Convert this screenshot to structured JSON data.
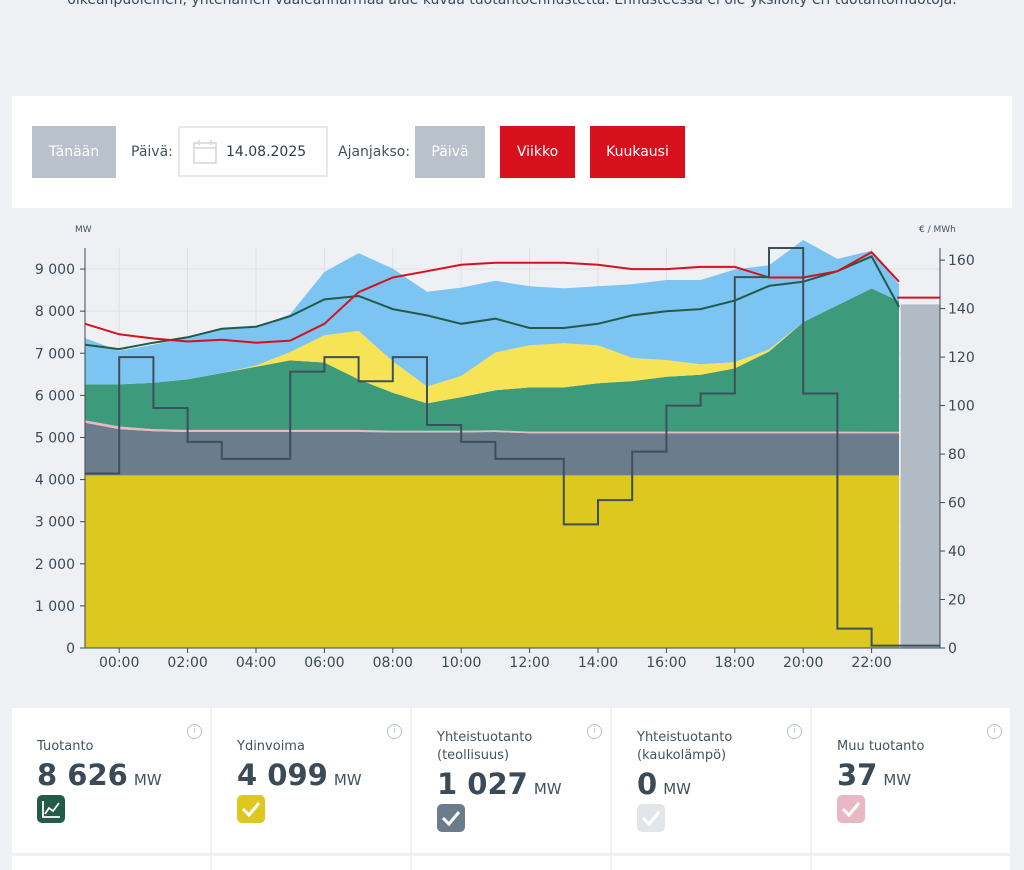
{
  "intro_text": "oikeanpuoleinen, yhtenäinen vaaleanharmaa alue kuvaa tuotantoennustetta. Ennusteessa ei ole yksilöity eri tuotantomuotoja.",
  "toolbar": {
    "today_label": "Tänään",
    "date_label": "Päivä:",
    "date_value": "14.08.2025",
    "period_label": "Ajanjakso:",
    "day_label": "Päivä",
    "week_label": "Viikko",
    "month_label": "Kuukausi"
  },
  "chart_data": {
    "type": "area",
    "left_unit": "MW",
    "right_unit": "€ / MWh",
    "x_ticks": [
      "00:00",
      "02:00",
      "04:00",
      "06:00",
      "08:00",
      "10:00",
      "12:00",
      "14:00",
      "16:00",
      "18:00",
      "20:00",
      "22:00"
    ],
    "y_ticks_left": [
      "0",
      "1 000",
      "2 000",
      "3 000",
      "4 000",
      "5 000",
      "6 000",
      "7 000",
      "8 000",
      "9 000"
    ],
    "y_ticks_right": [
      "0",
      "20",
      "40",
      "60",
      "80",
      "100",
      "120",
      "140",
      "160"
    ],
    "ylim_left": [
      0,
      9500
    ],
    "ylim_right": [
      0,
      165
    ],
    "grid": true,
    "hours": [
      -1,
      0,
      1,
      2,
      3,
      4,
      5,
      6,
      7,
      8,
      9,
      10,
      11,
      12,
      13,
      14,
      15,
      16,
      17,
      18,
      19,
      20,
      21,
      22,
      22.8
    ],
    "series": [
      {
        "key": "nuclear",
        "color": "#dcc81e",
        "values": [
          4100,
          4100,
          4100,
          4100,
          4100,
          4100,
          4100,
          4100,
          4100,
          4100,
          4100,
          4100,
          4100,
          4100,
          4100,
          4100,
          4100,
          4100,
          4100,
          4100,
          4100,
          4100,
          4100,
          4100,
          4100
        ]
      },
      {
        "key": "chp_industry",
        "color": "#6b7c8c",
        "values": [
          1250,
          1100,
          1050,
          1030,
          1030,
          1030,
          1030,
          1030,
          1030,
          1020,
          1020,
          1020,
          1030,
          1000,
          1000,
          1000,
          1000,
          1000,
          1000,
          1000,
          1000,
          1000,
          1000,
          1000,
          1000
        ]
      },
      {
        "key": "other",
        "color": "#e8b9c4",
        "values": [
          60,
          60,
          50,
          50,
          50,
          50,
          50,
          50,
          50,
          40,
          40,
          40,
          40,
          40,
          40,
          40,
          40,
          40,
          40,
          40,
          40,
          40,
          40,
          37,
          37
        ]
      },
      {
        "key": "hydro",
        "color": "#3d9a7a",
        "values": [
          850,
          1000,
          1100,
          1200,
          1350,
          1500,
          1650,
          1600,
          1200,
          900,
          650,
          800,
          950,
          1050,
          1050,
          1150,
          1200,
          1300,
          1350,
          1500,
          1900,
          2600,
          3000,
          3400,
          3100
        ]
      },
      {
        "key": "solar",
        "color": "#f7e456",
        "values": [
          0,
          0,
          0,
          0,
          0,
          30,
          200,
          650,
          1150,
          750,
          400,
          500,
          900,
          1000,
          1050,
          900,
          550,
          400,
          250,
          150,
          50,
          0,
          0,
          0,
          0
        ]
      },
      {
        "key": "wind",
        "color": "#7cc4f2",
        "values": [
          1100,
          800,
          900,
          1000,
          1050,
          900,
          900,
          1500,
          1850,
          2200,
          2250,
          2100,
          1700,
          1400,
          1300,
          1400,
          1750,
          1900,
          2000,
          2200,
          2000,
          1950,
          1100,
          900,
          400
        ]
      }
    ],
    "production_line": {
      "color": "#245a48",
      "values": [
        7200,
        7100,
        7250,
        7380,
        7580,
        7630,
        7880,
        8280,
        8360,
        8050,
        7900,
        7700,
        7820,
        7600,
        7600,
        7700,
        7900,
        8000,
        8050,
        8250,
        8600,
        8700,
        8950,
        9300,
        8100
      ]
    },
    "consumption_line": {
      "color": "#d6101c",
      "values": [
        7700,
        7450,
        7350,
        7280,
        7320,
        7250,
        7300,
        7700,
        8450,
        8800,
        8950,
        9100,
        9150,
        9150,
        9150,
        9100,
        9000,
        9000,
        9050,
        9050,
        8800,
        8800,
        8950,
        9400,
        8700
      ]
    },
    "forecast": {
      "color": "#b2bbc3",
      "from_hour": 22.85,
      "to_hour": 24,
      "value": 8160,
      "line_value": 8320
    },
    "price_line": {
      "color": "#3e4f5c",
      "steps": [
        [
          -1,
          72
        ],
        [
          0,
          120
        ],
        [
          1,
          99
        ],
        [
          2,
          85
        ],
        [
          3,
          78
        ],
        [
          4,
          78
        ],
        [
          5,
          114
        ],
        [
          6,
          120
        ],
        [
          7,
          110
        ],
        [
          8,
          120
        ],
        [
          9,
          92
        ],
        [
          10,
          85
        ],
        [
          11,
          78
        ],
        [
          12,
          78
        ],
        [
          13,
          51
        ],
        [
          14,
          61
        ],
        [
          15,
          81
        ],
        [
          16,
          100
        ],
        [
          17,
          105
        ],
        [
          18,
          153
        ],
        [
          19,
          165
        ],
        [
          20,
          105
        ],
        [
          21,
          8
        ],
        [
          22,
          1
        ],
        [
          23,
          1
        ],
        [
          24,
          1
        ]
      ]
    }
  },
  "cards": [
    {
      "title": "Tuotanto",
      "value": "8 626",
      "unit": "MW",
      "icon": "chart-line-icon",
      "color": "#245a48"
    },
    {
      "title": "Ydinvoima",
      "value": "4 099",
      "unit": "MW",
      "icon": "check-icon",
      "color": "#dcc81e"
    },
    {
      "title": "Yhteistuotanto (teollisuus)",
      "value": "1 027",
      "unit": "MW",
      "icon": "check-icon",
      "color": "#6b7c8c"
    },
    {
      "title": "Yhteistuotanto (kaukolämpö)",
      "value": "0",
      "unit": "MW",
      "icon": "check-icon",
      "color": "#e2e6e9"
    },
    {
      "title": "Muu tuotanto",
      "value": "37",
      "unit": "MW",
      "icon": "check-icon",
      "color": "#e8b9c4"
    }
  ],
  "info_glyph": "i"
}
